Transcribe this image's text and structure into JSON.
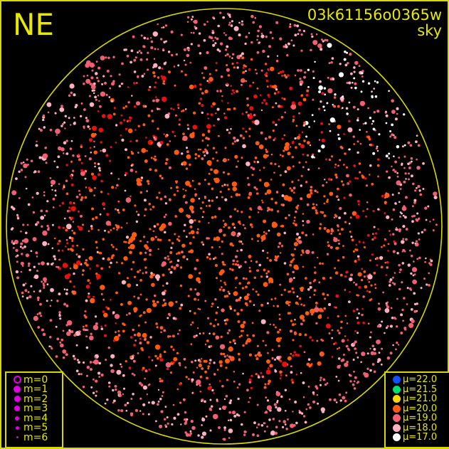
{
  "header": {
    "direction_label": "NE",
    "image_id": "03k61156o0365w",
    "image_type": "sky"
  },
  "horizon_color": "#d8d800",
  "magnitude_legend": {
    "symbol_color": "#e000e0",
    "items": [
      {
        "label": "m=0",
        "style": "ring"
      },
      {
        "label": "m=1"
      },
      {
        "label": "m=2"
      },
      {
        "label": "m=3"
      },
      {
        "label": "m=4"
      },
      {
        "label": "m=5"
      },
      {
        "label": "m=6"
      }
    ]
  },
  "mu_legend": {
    "items": [
      {
        "label": "μ=22.0",
        "color": "#1050ff"
      },
      {
        "label": "μ=21.5",
        "color": "#00e070"
      },
      {
        "label": "μ=21.0",
        "color": "#ffd800"
      },
      {
        "label": "μ=20.0",
        "color": "#ff5a10"
      },
      {
        "label": "μ=19.0",
        "color": "#f06070"
      },
      {
        "label": "μ=18.0",
        "color": "#ffb0c0"
      },
      {
        "label": "μ=17.0",
        "color": "#ffffff"
      }
    ]
  }
}
